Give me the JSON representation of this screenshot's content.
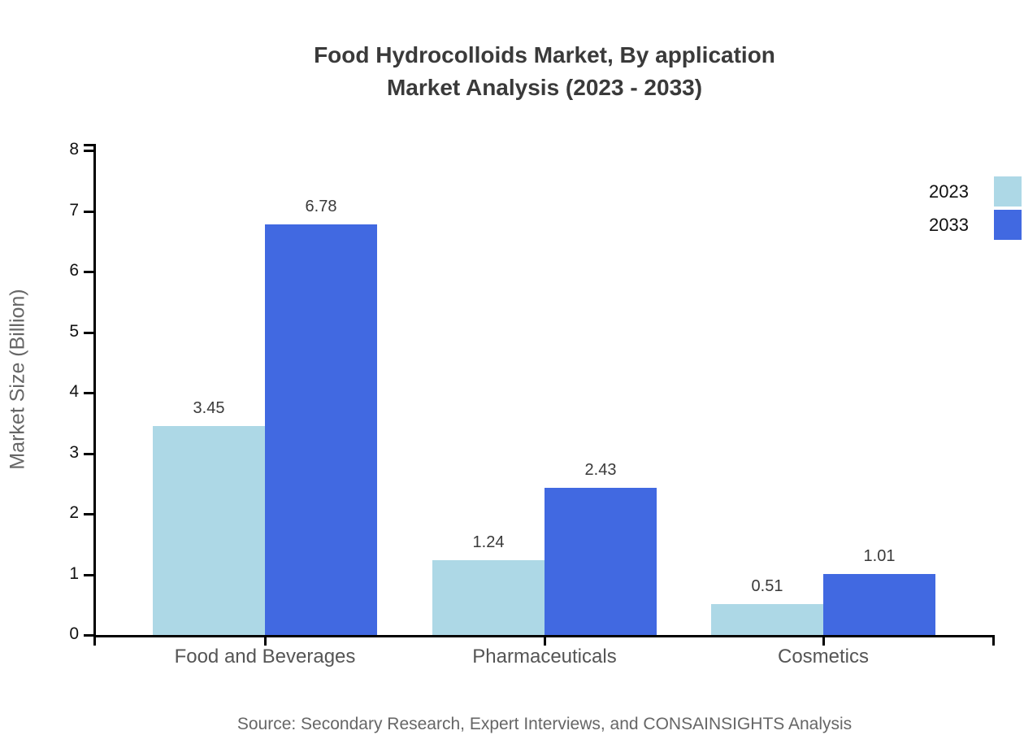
{
  "title": {
    "line1": "Food Hydrocolloids Market, By application",
    "line2": "Market Analysis (2023 - 2033)"
  },
  "y_axis_label": "Market Size (Billion)",
  "source": "Source: Secondary Research, Expert Interviews, and CONSAINSIGHTS Analysis",
  "legend": {
    "position": "right",
    "items": [
      {
        "label": "2023",
        "color": "#ADD8E6"
      },
      {
        "label": "2033",
        "color": "#4169E1"
      }
    ]
  },
  "chart_data": {
    "type": "bar",
    "title": "Food Hydrocolloids Market, By application Market Analysis (2023 - 2033)",
    "categories": [
      "Food and Beverages",
      "Pharmaceuticals",
      "Cosmetics"
    ],
    "series": [
      {
        "name": "2023",
        "color": "#ADD8E6",
        "values": [
          3.45,
          1.24,
          0.51
        ]
      },
      {
        "name": "2033",
        "color": "#4169E1",
        "values": [
          6.78,
          2.43,
          1.01
        ]
      }
    ],
    "value_labels": [
      [
        "3.45",
        "1.24",
        "0.51"
      ],
      [
        "6.78",
        "2.43",
        "1.01"
      ]
    ],
    "xlabel": "",
    "ylabel": "Market Size (Billion)",
    "ylim": [
      0,
      8
    ],
    "yticks": [
      0,
      1,
      2,
      3,
      4,
      5,
      6,
      7,
      8
    ],
    "grid": false,
    "legend_position": "right"
  }
}
